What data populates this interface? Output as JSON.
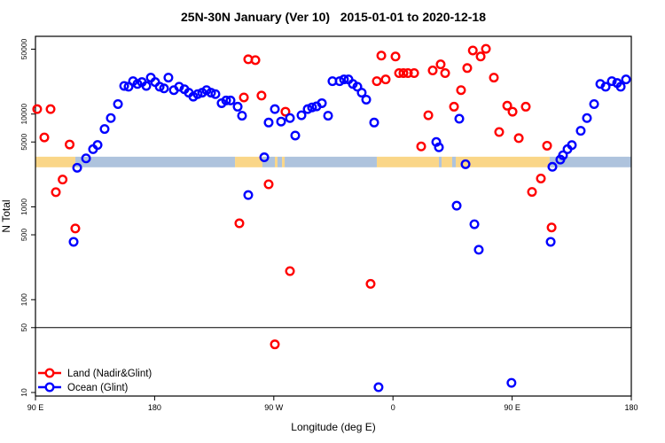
{
  "chart": {
    "title": "25N-30N January (Ver 10)   2015-01-01 to 2020-12-18",
    "xlabel": "Longitude (deg E)",
    "ylabel": "N Total",
    "legend": [
      {
        "label": "Land (Nadir&Glint)",
        "series": "land"
      },
      {
        "label": "Ocean (Glint)",
        "series": "ocean"
      }
    ]
  },
  "chart_data": {
    "type": "scatter",
    "title": "25N-30N January (Ver 10)   2015-01-01 to 2020-12-18",
    "xlabel": "Longitude (deg E)",
    "ylabel": "N Total",
    "x_axis": {
      "min": 90,
      "max": 540,
      "note": "longitude wraps eastward from 90E through 180, 90W, 0, 90E to 180",
      "ticks": [
        {
          "value": 90,
          "label": "90 E"
        },
        {
          "value": 180,
          "label": "180"
        },
        {
          "value": 270,
          "label": "90 W"
        },
        {
          "value": 360,
          "label": "0"
        },
        {
          "value": 450,
          "label": "90 E"
        },
        {
          "value": 540,
          "label": "180"
        }
      ]
    },
    "y_axis": {
      "scale": "log",
      "min": 10,
      "max": 50000,
      "ticks": [
        10,
        50,
        100,
        500,
        1000,
        5000,
        10000,
        50000
      ]
    },
    "reference_line_y": 50,
    "grid": false,
    "legend_position": "bottom-left-inside",
    "marker": {
      "shape": "open-circle",
      "radius": 4.3,
      "stroke_width": 2.4
    },
    "series": [
      {
        "name": "Land (Nadir&Glint)",
        "color": "#FF0000",
        "points": [
          [
            91.3,
            11300
          ],
          [
            96.7,
            5600
          ],
          [
            101.4,
            11300
          ],
          [
            105.4,
            1440
          ],
          [
            110.5,
            1970
          ],
          [
            115.8,
            4700
          ],
          [
            120.1,
            585
          ],
          [
            244.0,
            665
          ],
          [
            247.4,
            15100
          ],
          [
            250.7,
            38900
          ],
          [
            256.1,
            38100
          ],
          [
            260.7,
            15800
          ],
          [
            266.1,
            1750
          ],
          [
            270.8,
            33
          ],
          [
            278.8,
            10600
          ],
          [
            282.2,
            203
          ],
          [
            343.1,
            148
          ],
          [
            347.8,
            22600
          ],
          [
            351.2,
            42600
          ],
          [
            354.5,
            23600
          ],
          [
            361.9,
            41700
          ],
          [
            364.6,
            27600
          ],
          [
            367.9,
            27600
          ],
          [
            371.3,
            27600
          ],
          [
            376.0,
            27600
          ],
          [
            381.3,
            4480
          ],
          [
            386.7,
            9700
          ],
          [
            390.0,
            29500
          ],
          [
            396.0,
            34300
          ],
          [
            399.4,
            27600
          ],
          [
            406.1,
            12000
          ],
          [
            411.4,
            18100
          ],
          [
            416.1,
            31300
          ],
          [
            420.3,
            48400
          ],
          [
            426.2,
            41700
          ],
          [
            430.2,
            50400
          ],
          [
            436.2,
            24700
          ],
          [
            440.2,
            6400
          ],
          [
            446.3,
            12300
          ],
          [
            450.3,
            10600
          ],
          [
            455.0,
            5500
          ],
          [
            460.3,
            12000
          ],
          [
            465.0,
            1450
          ],
          [
            471.7,
            2020
          ],
          [
            476.4,
            4560
          ],
          [
            479.8,
            600
          ]
        ]
      },
      {
        "name": "Ocean (Glint)",
        "color": "#0000FF",
        "points": [
          [
            118.8,
            420
          ],
          [
            121.5,
            2640
          ],
          [
            128.2,
            3330
          ],
          [
            133.5,
            4180
          ],
          [
            136.9,
            4640
          ],
          [
            142.2,
            6900
          ],
          [
            146.9,
            9050
          ],
          [
            152.3,
            12800
          ],
          [
            157.0,
            20100
          ],
          [
            160.3,
            19700
          ],
          [
            163.7,
            22600
          ],
          [
            167.0,
            21100
          ],
          [
            170.4,
            22100
          ],
          [
            173.7,
            20100
          ],
          [
            177.1,
            24700
          ],
          [
            180.4,
            22100
          ],
          [
            183.8,
            19700
          ],
          [
            187.1,
            18900
          ],
          [
            190.4,
            24700
          ],
          [
            194.5,
            18100
          ],
          [
            198.5,
            19700
          ],
          [
            202.5,
            18500
          ],
          [
            205.8,
            17000
          ],
          [
            209.2,
            15400
          ],
          [
            212.5,
            16400
          ],
          [
            215.9,
            17000
          ],
          [
            219.2,
            18100
          ],
          [
            222.6,
            17000
          ],
          [
            225.9,
            16400
          ],
          [
            230.6,
            13100
          ],
          [
            234.0,
            14000
          ],
          [
            237.3,
            14000
          ],
          [
            242.7,
            12000
          ],
          [
            246.0,
            9600
          ],
          [
            250.7,
            1340
          ],
          [
            262.8,
            3420
          ],
          [
            266.1,
            8100
          ],
          [
            270.8,
            11300
          ],
          [
            275.5,
            8300
          ],
          [
            282.2,
            9050
          ],
          [
            286.2,
            5870
          ],
          [
            290.9,
            9700
          ],
          [
            295.6,
            11300
          ],
          [
            298.9,
            11800
          ],
          [
            302.3,
            12100
          ],
          [
            306.3,
            13100
          ],
          [
            311.0,
            9600
          ],
          [
            314.3,
            22600
          ],
          [
            319.7,
            22600
          ],
          [
            323.0,
            23600
          ],
          [
            326.4,
            23600
          ],
          [
            329.7,
            21100
          ],
          [
            333.1,
            19700
          ],
          [
            336.4,
            17000
          ],
          [
            339.8,
            14300
          ],
          [
            345.8,
            8100
          ],
          [
            349.1,
            11.4
          ],
          [
            392.7,
            5000
          ],
          [
            394.7,
            4380
          ],
          [
            408.1,
            1030
          ],
          [
            410.1,
            8900
          ],
          [
            414.8,
            2880
          ],
          [
            421.5,
            650
          ],
          [
            424.8,
            345
          ],
          [
            449.5,
            12.7
          ],
          [
            479.1,
            420
          ],
          [
            480.4,
            2700
          ],
          [
            486.4,
            3230
          ],
          [
            488.4,
            3600
          ],
          [
            491.8,
            4180
          ],
          [
            495.1,
            4630
          ],
          [
            501.8,
            6600
          ],
          [
            506.5,
            9050
          ],
          [
            511.9,
            12800
          ],
          [
            516.6,
            21100
          ],
          [
            520.6,
            19700
          ],
          [
            525.3,
            22600
          ],
          [
            529.3,
            21600
          ],
          [
            532.0,
            19700
          ],
          [
            536.0,
            23600
          ]
        ]
      }
    ],
    "surface_band": {
      "description": "land/ocean surface strip across the 25N-30N latitude belt",
      "value_top": 3470,
      "value_bottom": 2670,
      "colors": {
        "land": "#FAD688",
        "ocean": "#AEC3DD"
      },
      "segments": [
        {
          "from": 90.0,
          "to": 120.1,
          "type": "land"
        },
        {
          "from": 120.1,
          "to": 240.7,
          "type": "ocean"
        },
        {
          "from": 240.7,
          "to": 261.4,
          "type": "land"
        },
        {
          "from": 261.4,
          "to": 270.8,
          "type": "ocean"
        },
        {
          "from": 270.8,
          "to": 272.8,
          "type": "land"
        },
        {
          "from": 272.8,
          "to": 276.2,
          "type": "ocean"
        },
        {
          "from": 276.2,
          "to": 278.2,
          "type": "land"
        },
        {
          "from": 278.2,
          "to": 347.8,
          "type": "ocean"
        },
        {
          "from": 347.8,
          "to": 394.7,
          "type": "land"
        },
        {
          "from": 394.7,
          "to": 396.7,
          "type": "ocean"
        },
        {
          "from": 396.7,
          "to": 404.7,
          "type": "land"
        },
        {
          "from": 404.7,
          "to": 407.4,
          "type": "ocean"
        },
        {
          "from": 407.4,
          "to": 478.3,
          "type": "land"
        },
        {
          "from": 478.3,
          "to": 540.0,
          "type": "ocean"
        }
      ]
    }
  }
}
